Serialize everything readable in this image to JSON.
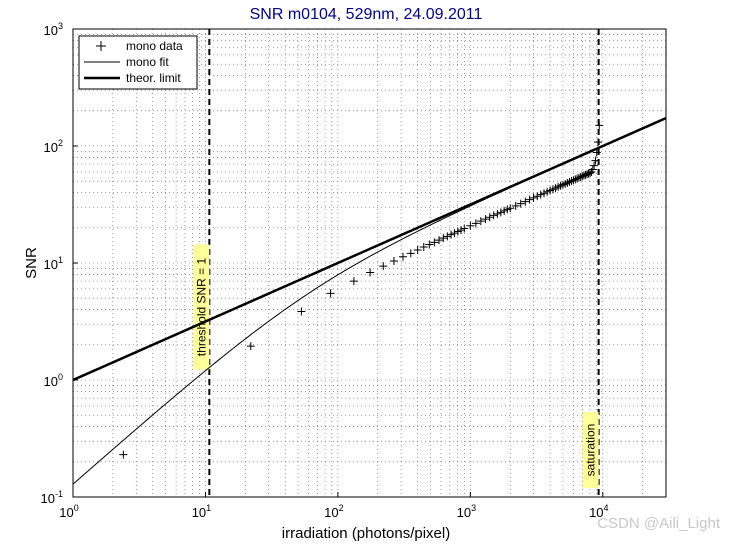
{
  "chart_data": {
    "type": "line",
    "title": "SNR m0104, 529nm, 24.09.2011",
    "xlabel": "irradiation (photons/pixel)",
    "ylabel": "SNR",
    "xscale": "log",
    "yscale": "log",
    "xlim": [
      1,
      30000
    ],
    "ylim": [
      0.1,
      1000
    ],
    "x_ticks": [
      {
        "value": 1,
        "base": "10",
        "exp": "0"
      },
      {
        "value": 10,
        "base": "10",
        "exp": "1"
      },
      {
        "value": 100,
        "base": "10",
        "exp": "2"
      },
      {
        "value": 1000,
        "base": "10",
        "exp": "3"
      },
      {
        "value": 10000,
        "base": "10",
        "exp": "4"
      }
    ],
    "y_ticks": [
      {
        "value": 0.1,
        "base": "10",
        "exp": "-1"
      },
      {
        "value": 1,
        "base": "10",
        "exp": "0"
      },
      {
        "value": 10,
        "base": "10",
        "exp": "1"
      },
      {
        "value": 100,
        "base": "10",
        "exp": "2"
      },
      {
        "value": 1000,
        "base": "10",
        "exp": "3"
      }
    ],
    "grid": true,
    "legend_position": "top-left",
    "series": [
      {
        "name": "mono data",
        "style": "markers-plus",
        "color": "#000000",
        "x": [
          2.4,
          22,
          53,
          88,
          132,
          175,
          220,
          265,
          310,
          355,
          400,
          445,
          490,
          535,
          580,
          625,
          670,
          715,
          760,
          805,
          850,
          900,
          1000,
          1100,
          1200,
          1300,
          1400,
          1500,
          1600,
          1700,
          1800,
          1900,
          2000,
          2200,
          2400,
          2600,
          2800,
          3000,
          3200,
          3400,
          3600,
          3800,
          4000,
          4200,
          4400,
          4600,
          4800,
          5000,
          5200,
          5400,
          5600,
          5800,
          6000,
          6200,
          6400,
          6600,
          6800,
          7000,
          7200,
          7400,
          7600,
          7800,
          8000,
          8200,
          8400,
          8600,
          8800,
          9000,
          9200,
          9400
        ],
        "y": [
          0.23,
          1.95,
          3.85,
          5.5,
          7.0,
          8.3,
          9.4,
          10.4,
          11.3,
          12.1,
          12.9,
          13.7,
          14.4,
          15.0,
          15.7,
          16.3,
          16.9,
          17.5,
          18.0,
          18.6,
          19.1,
          19.7,
          20.8,
          21.8,
          22.8,
          23.7,
          24.6,
          25.5,
          26.3,
          27.1,
          27.9,
          28.7,
          29.4,
          30.8,
          32.2,
          33.5,
          34.8,
          36.0,
          37.2,
          38.4,
          39.5,
          40.6,
          41.7,
          42.7,
          43.7,
          44.7,
          45.7,
          46.6,
          47.5,
          48.4,
          49.3,
          50.2,
          51.0,
          51.9,
          52.7,
          53.5,
          54.3,
          55.1,
          55.9,
          56.6,
          57.4,
          58.1,
          58.8,
          60,
          63,
          68,
          75,
          88,
          108,
          150
        ]
      },
      {
        "name": "mono fit",
        "style": "line-thin",
        "color": "#000000",
        "model": "x / sqrt(x + 7.7^2)",
        "x_range": [
          1,
          9500
        ]
      },
      {
        "name": "theor. limit",
        "style": "line-thick",
        "color": "#000000",
        "model": "sqrt(x)",
        "x_range": [
          1,
          30000
        ]
      }
    ],
    "vlines": [
      {
        "x": 10.7,
        "label": "threshold SNR = 1",
        "style": "dashed"
      },
      {
        "x": 9300,
        "label": "saturation",
        "style": "dashed"
      }
    ],
    "annotation_bg": "#ffff99"
  },
  "watermark": "CSDN @Aili_Light"
}
